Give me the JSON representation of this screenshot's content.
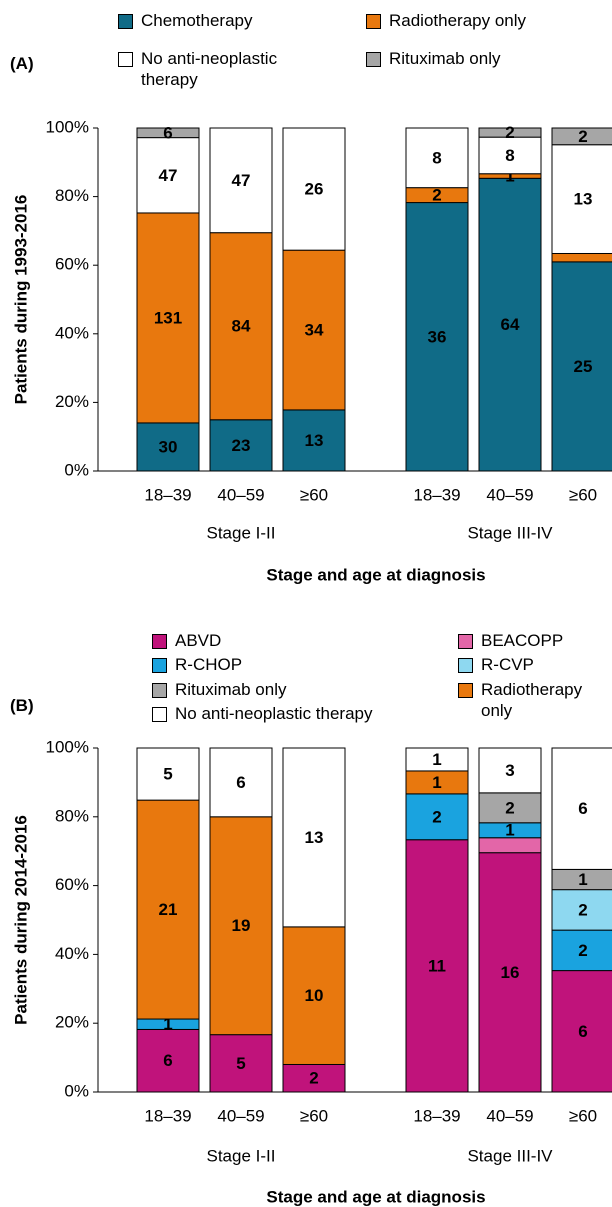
{
  "chart_data": [
    {
      "type": "bar",
      "stacked": "percent",
      "panel": "(A)",
      "ylabel": "Patients during 1993-2016",
      "xlabel": "Stage and age at diagnosis",
      "categories": [
        "18–39",
        "40–59",
        "≥60",
        "18–39",
        "40–59",
        "≥60"
      ],
      "groups": [
        "Stage I-II",
        "Stage III-IV"
      ],
      "ylim": [
        0,
        100
      ],
      "yticks": [
        {
          "value": 0,
          "label": "0%"
        },
        {
          "value": 20,
          "label": "20%"
        },
        {
          "value": 40,
          "label": "40%"
        },
        {
          "value": 60,
          "label": "60%"
        },
        {
          "value": 80,
          "label": "80%"
        },
        {
          "value": 100,
          "label": "100%"
        }
      ],
      "series": [
        {
          "name": "Chemotherapy",
          "color": "#106b87",
          "values": [
            30,
            23,
            13,
            36,
            64,
            25
          ],
          "value_labels": [
            "30",
            "23",
            "13",
            "36",
            "64",
            "25"
          ]
        },
        {
          "name": "Radiotherapy only",
          "color": "#e8780e",
          "values": [
            131,
            84,
            34,
            2,
            1,
            1
          ],
          "value_labels": [
            "131",
            "84",
            "34",
            "2",
            "1",
            null
          ]
        },
        {
          "name": "No anti-neoplastic therapy",
          "color": "#ffffff",
          "values": [
            47,
            47,
            26,
            8,
            8,
            13
          ],
          "value_labels": [
            "47",
            "47",
            "26",
            "8",
            "8",
            "13"
          ]
        },
        {
          "name": "Rituximab only",
          "color": "#a6a6a6",
          "values": [
            6,
            0,
            0,
            0,
            2,
            2
          ],
          "value_labels": [
            "6",
            null,
            null,
            null,
            "2",
            "2"
          ]
        }
      ]
    },
    {
      "type": "bar",
      "stacked": "percent",
      "panel": "(B)",
      "ylabel": "Patients during 2014-2016",
      "xlabel": "Stage and age at diagnosis",
      "categories": [
        "18–39",
        "40–59",
        "≥60",
        "18–39",
        "40–59",
        "≥60"
      ],
      "groups": [
        "Stage I-II",
        "Stage III-IV"
      ],
      "ylim": [
        0,
        100
      ],
      "yticks": [
        {
          "value": 0,
          "label": "0%"
        },
        {
          "value": 20,
          "label": "20%"
        },
        {
          "value": 40,
          "label": "40%"
        },
        {
          "value": 60,
          "label": "60%"
        },
        {
          "value": 80,
          "label": "80%"
        },
        {
          "value": 100,
          "label": "100%"
        }
      ],
      "series": [
        {
          "name": "ABVD",
          "color": "#c0137b",
          "values": [
            6,
            5,
            2,
            11,
            16,
            6
          ],
          "value_labels": [
            "6",
            "5",
            "2",
            "11",
            "16",
            "6"
          ]
        },
        {
          "name": "BEACOPP",
          "color": "#e366a8",
          "values": [
            0,
            0,
            0,
            0,
            1,
            0
          ],
          "value_labels": [
            null,
            null,
            null,
            null,
            null,
            null
          ]
        },
        {
          "name": "R-CHOP",
          "color": "#1aa3df",
          "values": [
            1,
            0,
            0,
            2,
            1,
            2
          ],
          "value_labels": [
            "1",
            null,
            null,
            "2",
            "1",
            "2"
          ]
        },
        {
          "name": "R-CVP",
          "color": "#8ed8f0",
          "values": [
            0,
            0,
            0,
            0,
            0,
            2
          ],
          "value_labels": [
            null,
            null,
            null,
            null,
            null,
            "2"
          ]
        },
        {
          "name": "Rituximab only",
          "color": "#a6a6a6",
          "values": [
            0,
            0,
            0,
            0,
            2,
            1
          ],
          "value_labels": [
            null,
            null,
            null,
            null,
            "2",
            "1"
          ]
        },
        {
          "name": "Radiotherapy only",
          "color": "#e8780e",
          "values": [
            21,
            19,
            10,
            1,
            0,
            0
          ],
          "value_labels": [
            "21",
            "19",
            "10",
            "1",
            null,
            null
          ]
        },
        {
          "name": "No anti-neoplastic therapy",
          "color": "#ffffff",
          "values": [
            5,
            6,
            13,
            1,
            3,
            6
          ],
          "value_labels": [
            "5",
            "6",
            "13",
            "1",
            "3",
            "6"
          ]
        }
      ]
    }
  ]
}
